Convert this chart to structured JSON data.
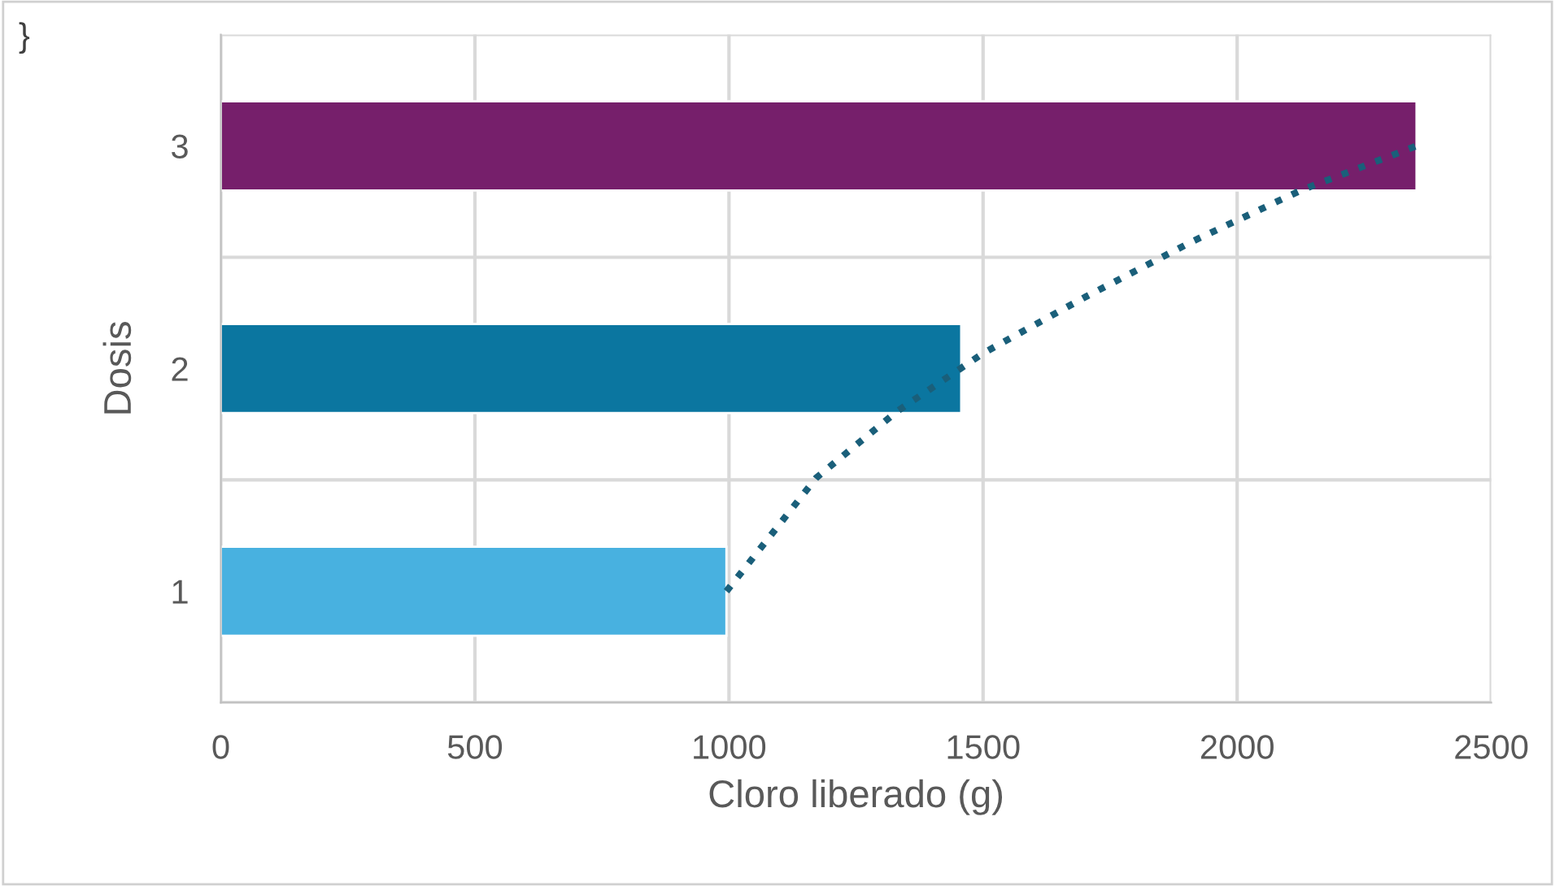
{
  "chart_data": {
    "type": "bar",
    "orientation": "horizontal",
    "xlabel": "Cloro liberado (g)",
    "ylabel": "Dosis",
    "x": [
      1,
      2,
      3
    ],
    "series": [
      {
        "colors": [
          "#48b1e0",
          "#0b76a0",
          "#761f6b"
        ],
        "values": [
          995,
          1457,
          2353
        ]
      },
      {
        "type": "line",
        "color": "#1a5f7a",
        "line_style": "dotted",
        "x": [
          1.0,
          1.51,
          1.81,
          2.07,
          2.32,
          2.57,
          2.8,
          3.0
        ],
        "values": [
          995,
          1172,
          1332,
          1501,
          1700,
          1911,
          2125,
          2353
        ]
      }
    ],
    "xlim": [
      0,
      2500
    ],
    "xticks": [
      0,
      500,
      1000,
      1500,
      2000,
      2500
    ],
    "ylim": [
      0.5,
      3.5
    ],
    "yticks": [
      1,
      2,
      3
    ],
    "grid": true,
    "annotations": [
      "}"
    ]
  }
}
